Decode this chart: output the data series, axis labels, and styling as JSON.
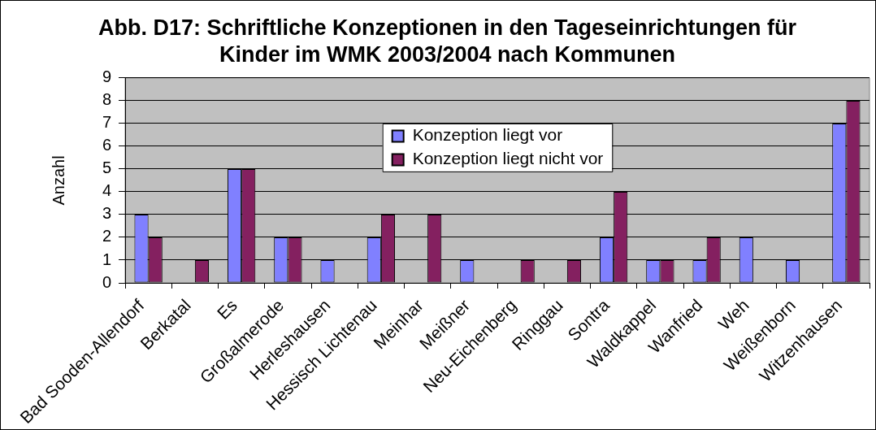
{
  "chart_data": {
    "type": "bar",
    "title": "Abb. D17: Schriftliche Konzeptionen in den Tageseinrichtungen für Kinder im WMK 2003/2004 nach Kommunen",
    "ylabel": "Anzahl",
    "categories": [
      "Bad Sooden-Allendorf",
      "Berkatal",
      "Es",
      "Großalmerode",
      "Herleshausen",
      "Hessisch Lichtenau",
      "Meinhar",
      "Meißner",
      "Neu-Eichenberg",
      "Ringgau",
      "Sontra",
      "Waldkappel",
      "Wanfried",
      "Weh",
      "Weißenborn",
      "Witzenhausen"
    ],
    "series": [
      {
        "name": "Konzeption liegt vor",
        "color": "#8080ff",
        "values": [
          3,
          null,
          5,
          2,
          1,
          2,
          null,
          1,
          null,
          null,
          2,
          1,
          1,
          2,
          1,
          7
        ]
      },
      {
        "name": "Konzeption liegt nicht vor",
        "color": "#842060",
        "values": [
          2,
          1,
          5,
          2,
          null,
          3,
          3,
          null,
          1,
          1,
          4,
          1,
          2,
          null,
          null,
          8
        ]
      }
    ],
    "ylim": [
      0,
      9
    ],
    "yticks": [
      0,
      1,
      2,
      3,
      4,
      5,
      6,
      7,
      8,
      9
    ],
    "grid": "y",
    "legend": "top"
  }
}
